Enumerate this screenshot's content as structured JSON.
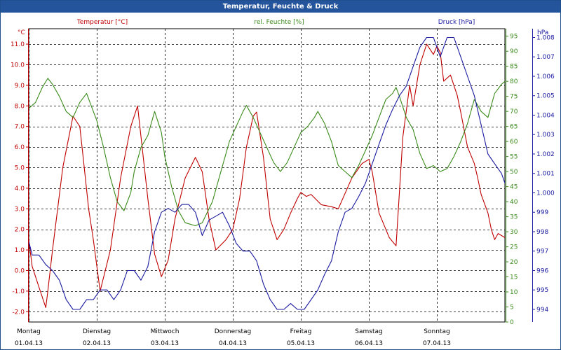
{
  "window": {
    "title": "Temperatur, Feuchte & Druck"
  },
  "chart_data": {
    "type": "line",
    "title": "Temperatur, Feuchte & Druck",
    "grid": true,
    "x_range": [
      0,
      7
    ],
    "x_ticks": [
      {
        "day": "Montag",
        "date": "01.04.13"
      },
      {
        "day": "Dienstag",
        "date": "02.04.13"
      },
      {
        "day": "Mittwoch",
        "date": "03.04.13"
      },
      {
        "day": "Donnerstag",
        "date": "04.04.13"
      },
      {
        "day": "Freitag",
        "date": "05.04.13"
      },
      {
        "day": "Samstag",
        "date": "06.04.13"
      },
      {
        "day": "Sonntag",
        "date": "07.04.13"
      }
    ],
    "axes": {
      "temperature": {
        "label": "Temperatur [°C]",
        "unit": "°C",
        "range": [
          -2.5,
          11.75
        ],
        "ticks": [
          "-2.0",
          "-1.0",
          "0.0",
          "1.0",
          "2.0",
          "3.0",
          "4.0",
          "5.0",
          "6.0",
          "7.0",
          "8.0",
          "9.0",
          "10.0",
          "11.0"
        ],
        "tick_values": [
          -2,
          -1,
          0,
          1,
          2,
          3,
          4,
          5,
          6,
          7,
          8,
          9,
          10,
          11
        ],
        "color": "#c00000"
      },
      "humidity": {
        "label": "rel. Feuchte [%]",
        "unit": "%",
        "range": [
          0,
          97.5
        ],
        "ticks": [
          "0",
          "5",
          "10",
          "15",
          "20",
          "25",
          "30",
          "35",
          "40",
          "45",
          "50",
          "55",
          "60",
          "65",
          "70",
          "75",
          "80",
          "85",
          "90",
          "95"
        ],
        "tick_values": [
          0,
          5,
          10,
          15,
          20,
          25,
          30,
          35,
          40,
          45,
          50,
          55,
          60,
          65,
          70,
          75,
          80,
          85,
          90,
          95
        ],
        "color": "#3a8a1a"
      },
      "pressure": {
        "label": "Druck [hPa]",
        "unit": "hPa",
        "range": [
          993.35,
          1008.45
        ],
        "ticks": [
          "994",
          "995",
          "996",
          "997",
          "998",
          "999",
          "1.000",
          "1.001",
          "1.002",
          "1.003",
          "1.004",
          "1.005",
          "1.006",
          "1.007",
          "1.008"
        ],
        "tick_values": [
          994,
          995,
          996,
          997,
          998,
          999,
          1000,
          1001,
          1002,
          1003,
          1004,
          1005,
          1006,
          1007,
          1008
        ],
        "color": "#1a1aa0"
      }
    },
    "series": [
      {
        "name": "Temperatur [°C]",
        "axis": "temperature",
        "color": "#c00000",
        "x": [
          0,
          0.05,
          0.15,
          0.25,
          0.28,
          0.35,
          0.5,
          0.65,
          0.75,
          0.8,
          0.88,
          0.95,
          1.05,
          1.2,
          1.35,
          1.5,
          1.6,
          1.75,
          1.85,
          1.95,
          2.05,
          2.15,
          2.3,
          2.45,
          2.55,
          2.65,
          2.75,
          2.9,
          3.0,
          3.1,
          3.2,
          3.3,
          3.35,
          3.45,
          3.55,
          3.65,
          3.75,
          3.85,
          3.95,
          4.0,
          4.08,
          4.15,
          4.3,
          4.45,
          4.55,
          4.75,
          4.9,
          5.0,
          5.05,
          5.15,
          5.3,
          5.4,
          5.5,
          5.6,
          5.65,
          5.75,
          5.85,
          5.95,
          6.0,
          6.05,
          6.1,
          6.2,
          6.3,
          6.35,
          6.45,
          6.55,
          6.6,
          6.65,
          6.75,
          6.8,
          6.85,
          6.9,
          7.0
        ],
        "y": [
          1.5,
          0.2,
          -0.8,
          -1.8,
          -1.0,
          1.0,
          5.0,
          7.5,
          7.0,
          5.5,
          3.0,
          1.5,
          -1.0,
          1.0,
          4.5,
          7.0,
          8.0,
          3.5,
          0.8,
          -0.3,
          0.5,
          2.5,
          4.5,
          5.5,
          4.8,
          2.5,
          1.0,
          1.5,
          2.0,
          3.5,
          6.0,
          7.5,
          7.7,
          5.5,
          2.5,
          1.5,
          2.0,
          2.8,
          3.5,
          3.8,
          3.6,
          3.7,
          3.2,
          3.1,
          3.0,
          4.5,
          5.2,
          5.4,
          4.8,
          2.8,
          1.6,
          1.2,
          6.5,
          9.0,
          8.0,
          10.0,
          11.0,
          10.5,
          10.9,
          10.6,
          9.2,
          9.5,
          8.5,
          7.7,
          6.0,
          5.2,
          4.5,
          3.7,
          2.8,
          2.0,
          1.5,
          1.8,
          1.6
        ]
      },
      {
        "name": "rel. Feuchte [%]",
        "axis": "humidity",
        "color": "#3a8a1a",
        "x": [
          0,
          0.1,
          0.2,
          0.28,
          0.35,
          0.45,
          0.55,
          0.65,
          0.75,
          0.85,
          0.95,
          1.0,
          1.1,
          1.2,
          1.3,
          1.4,
          1.5,
          1.55,
          1.65,
          1.75,
          1.85,
          1.95,
          2.0,
          2.1,
          2.2,
          2.3,
          2.45,
          2.55,
          2.7,
          2.85,
          2.95,
          3.05,
          3.15,
          3.2,
          3.3,
          3.4,
          3.5,
          3.6,
          3.7,
          3.8,
          3.9,
          4.0,
          4.1,
          4.2,
          4.25,
          4.35,
          4.45,
          4.55,
          4.65,
          4.75,
          4.85,
          4.95,
          5.05,
          5.15,
          5.25,
          5.35,
          5.4,
          5.45,
          5.55,
          5.65,
          5.75,
          5.85,
          5.95,
          6.05,
          6.15,
          6.25,
          6.35,
          6.45,
          6.55,
          6.65,
          6.75,
          6.85,
          6.95,
          7.0
        ],
        "y": [
          71,
          73,
          78,
          81,
          79,
          75,
          70,
          68,
          73,
          76,
          70,
          67,
          58,
          48,
          40,
          37,
          43,
          50,
          58,
          62,
          70,
          63,
          55,
          45,
          37,
          33,
          32,
          33,
          40,
          52,
          60,
          65,
          70,
          72,
          68,
          63,
          58,
          53,
          50,
          53,
          58,
          63,
          65,
          68,
          70,
          66,
          60,
          52,
          50,
          48,
          52,
          57,
          62,
          68,
          74,
          76,
          78,
          75,
          68,
          64,
          56,
          51,
          52,
          50,
          51,
          55,
          60,
          66,
          74,
          70,
          68,
          76,
          79,
          80
        ]
      },
      {
        "name": "Druck [hPa]",
        "axis": "pressure",
        "color": "#1a1aa0",
        "x": [
          0,
          0.05,
          0.15,
          0.25,
          0.35,
          0.45,
          0.55,
          0.65,
          0.75,
          0.85,
          0.95,
          1.05,
          1.15,
          1.25,
          1.35,
          1.45,
          1.55,
          1.65,
          1.75,
          1.85,
          1.95,
          2.05,
          2.15,
          2.25,
          2.35,
          2.45,
          2.55,
          2.65,
          2.75,
          2.85,
          2.95,
          3.05,
          3.15,
          3.25,
          3.35,
          3.45,
          3.55,
          3.65,
          3.75,
          3.85,
          3.95,
          4.05,
          4.15,
          4.25,
          4.35,
          4.45,
          4.55,
          4.65,
          4.75,
          4.85,
          4.95,
          5.05,
          5.15,
          5.25,
          5.35,
          5.45,
          5.55,
          5.65,
          5.75,
          5.85,
          5.95,
          6.05,
          6.15,
          6.25,
          6.35,
          6.45,
          6.55,
          6.65,
          6.75,
          6.85,
          6.95,
          7.0
        ],
        "y": [
          997.5,
          996.8,
          996.8,
          996.3,
          996.0,
          995.5,
          994.5,
          994.0,
          994.0,
          994.5,
          994.5,
          995.0,
          995.0,
          994.5,
          995.0,
          996.0,
          996.0,
          995.5,
          996.2,
          998.0,
          999.0,
          999.2,
          999.0,
          999.4,
          999.4,
          999.0,
          997.8,
          998.6,
          998.8,
          999.0,
          998.3,
          997.4,
          997.0,
          997.0,
          996.5,
          995.3,
          994.5,
          994.0,
          994.0,
          994.3,
          994.0,
          994.0,
          994.5,
          995.0,
          995.8,
          996.5,
          998.0,
          999.0,
          999.2,
          999.8,
          1000.5,
          1001.5,
          1002.5,
          1003.5,
          1004.3,
          1005.0,
          1005.5,
          1006.5,
          1007.5,
          1008.0,
          1008.0,
          1007.0,
          1008.0,
          1008.0,
          1007.0,
          1006.0,
          1005.0,
          1003.5,
          1002.0,
          1001.5,
          1001.0,
          1000.5
        ]
      }
    ]
  }
}
